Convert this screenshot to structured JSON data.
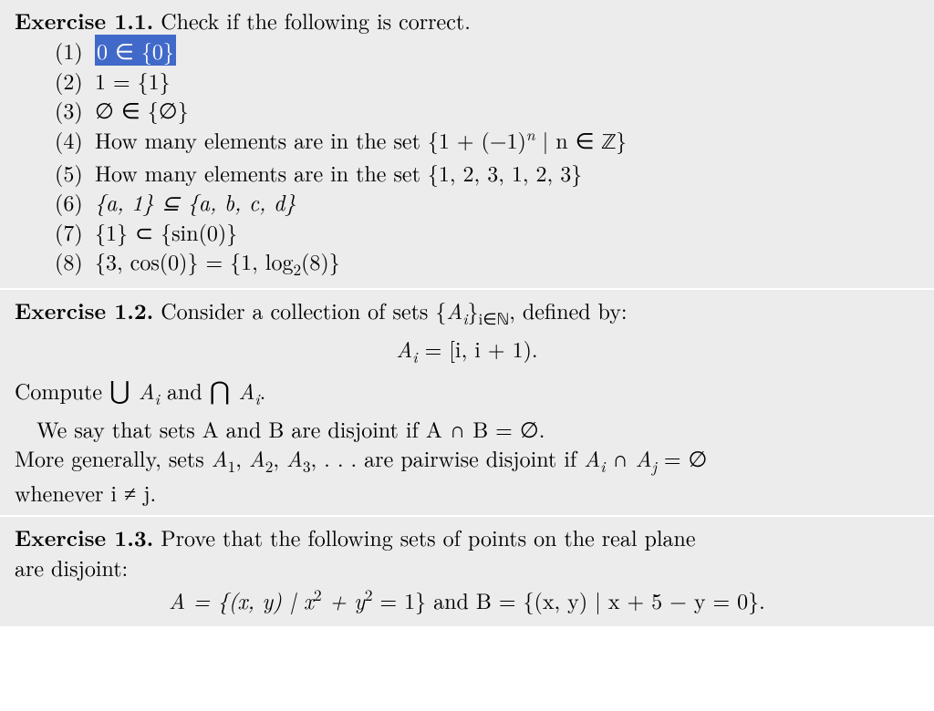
{
  "colors": {
    "block_bg": "#ececec",
    "highlight_bg": "#4169c9",
    "highlight_fg": "#ffffff",
    "text": "#000000"
  },
  "typography": {
    "base_fontsize": 24,
    "line_height": 1.35,
    "font_family": "Latin Modern Roman / Computer Modern serif"
  },
  "ex11": {
    "heading_label": "Exercise 1.1.",
    "heading_text": " Check if the following is correct.",
    "items": [
      {
        "num": "(1)",
        "text": "0 ∈ {0}",
        "highlighted": true
      },
      {
        "num": "(2)",
        "text": "1 = {1}"
      },
      {
        "num": "(3)",
        "text": "∅ ∈ {∅}"
      },
      {
        "num": "(4)",
        "prefix": "How many elements are in the set {1 + (−1)",
        "sup": "n",
        "mid": " | n ∈ ",
        "bbZ": "ℤ",
        "suffix": "}"
      },
      {
        "num": "(5)",
        "text": "How many elements are in the set {1, 2, 3, 1, 2, 3}"
      },
      {
        "num": "(6)",
        "text": "{a, 1} ⊆ {a, b, c, d}"
      },
      {
        "num": "(7)",
        "text": "{1} ⊂ {sin(0)}"
      },
      {
        "num": "(8)",
        "prefix": "{3, cos(0)} = {1, log",
        "sub": "2",
        "suffix": "(8)}"
      }
    ]
  },
  "ex12": {
    "heading_label": "Exercise 1.2.",
    "heading_text_pre": " Consider a collection of sets {",
    "heading_Ai": "A",
    "heading_i": "i",
    "heading_text_mid": "}",
    "heading_sub": "i∈ℕ",
    "heading_text_post": ", defined by:",
    "formula_pre": "A",
    "formula_sub": "i",
    "formula_mid": " = [i, i + 1).",
    "compute_pre": "Compute ",
    "compute_cup": "⋃ ",
    "compute_A1": "A",
    "compute_i1": "i",
    "compute_and": " and ",
    "compute_cap": "⋂ ",
    "compute_A2": "A",
    "compute_i2": "i",
    "compute_dot": ".",
    "disjoint_line": "We say that sets A and B are disjoint if A ∩ B = ∅.",
    "pairwise_pre": "More generally, sets ",
    "pairwise_A1": "A",
    "pairwise_s1": "1",
    "pairwise_c1": ", ",
    "pairwise_A2": "A",
    "pairwise_s2": "2",
    "pairwise_c2": ", ",
    "pairwise_A3": "A",
    "pairwise_s3": "3",
    "pairwise_mid": ", . . . are pairwise disjoint if ",
    "pairwise_Ai": "A",
    "pairwise_si": "i",
    "pairwise_cap": " ∩ ",
    "pairwise_Aj": "A",
    "pairwise_sj": "j",
    "pairwise_eq": " = ∅",
    "pairwise_line2": "whenever i ≠ j."
  },
  "ex13": {
    "heading_label": "Exercise 1.3.",
    "heading_text": " Prove that the following sets of points on the real plane",
    "heading_line2": "are disjoint:",
    "formula_pre": "A = {(x, y) | x",
    "formula_sq1": "2",
    "formula_mid1": " + y",
    "formula_sq2": "2",
    "formula_mid2": " = 1} and B = {(x, y) | x + 5 − y = 0}."
  }
}
